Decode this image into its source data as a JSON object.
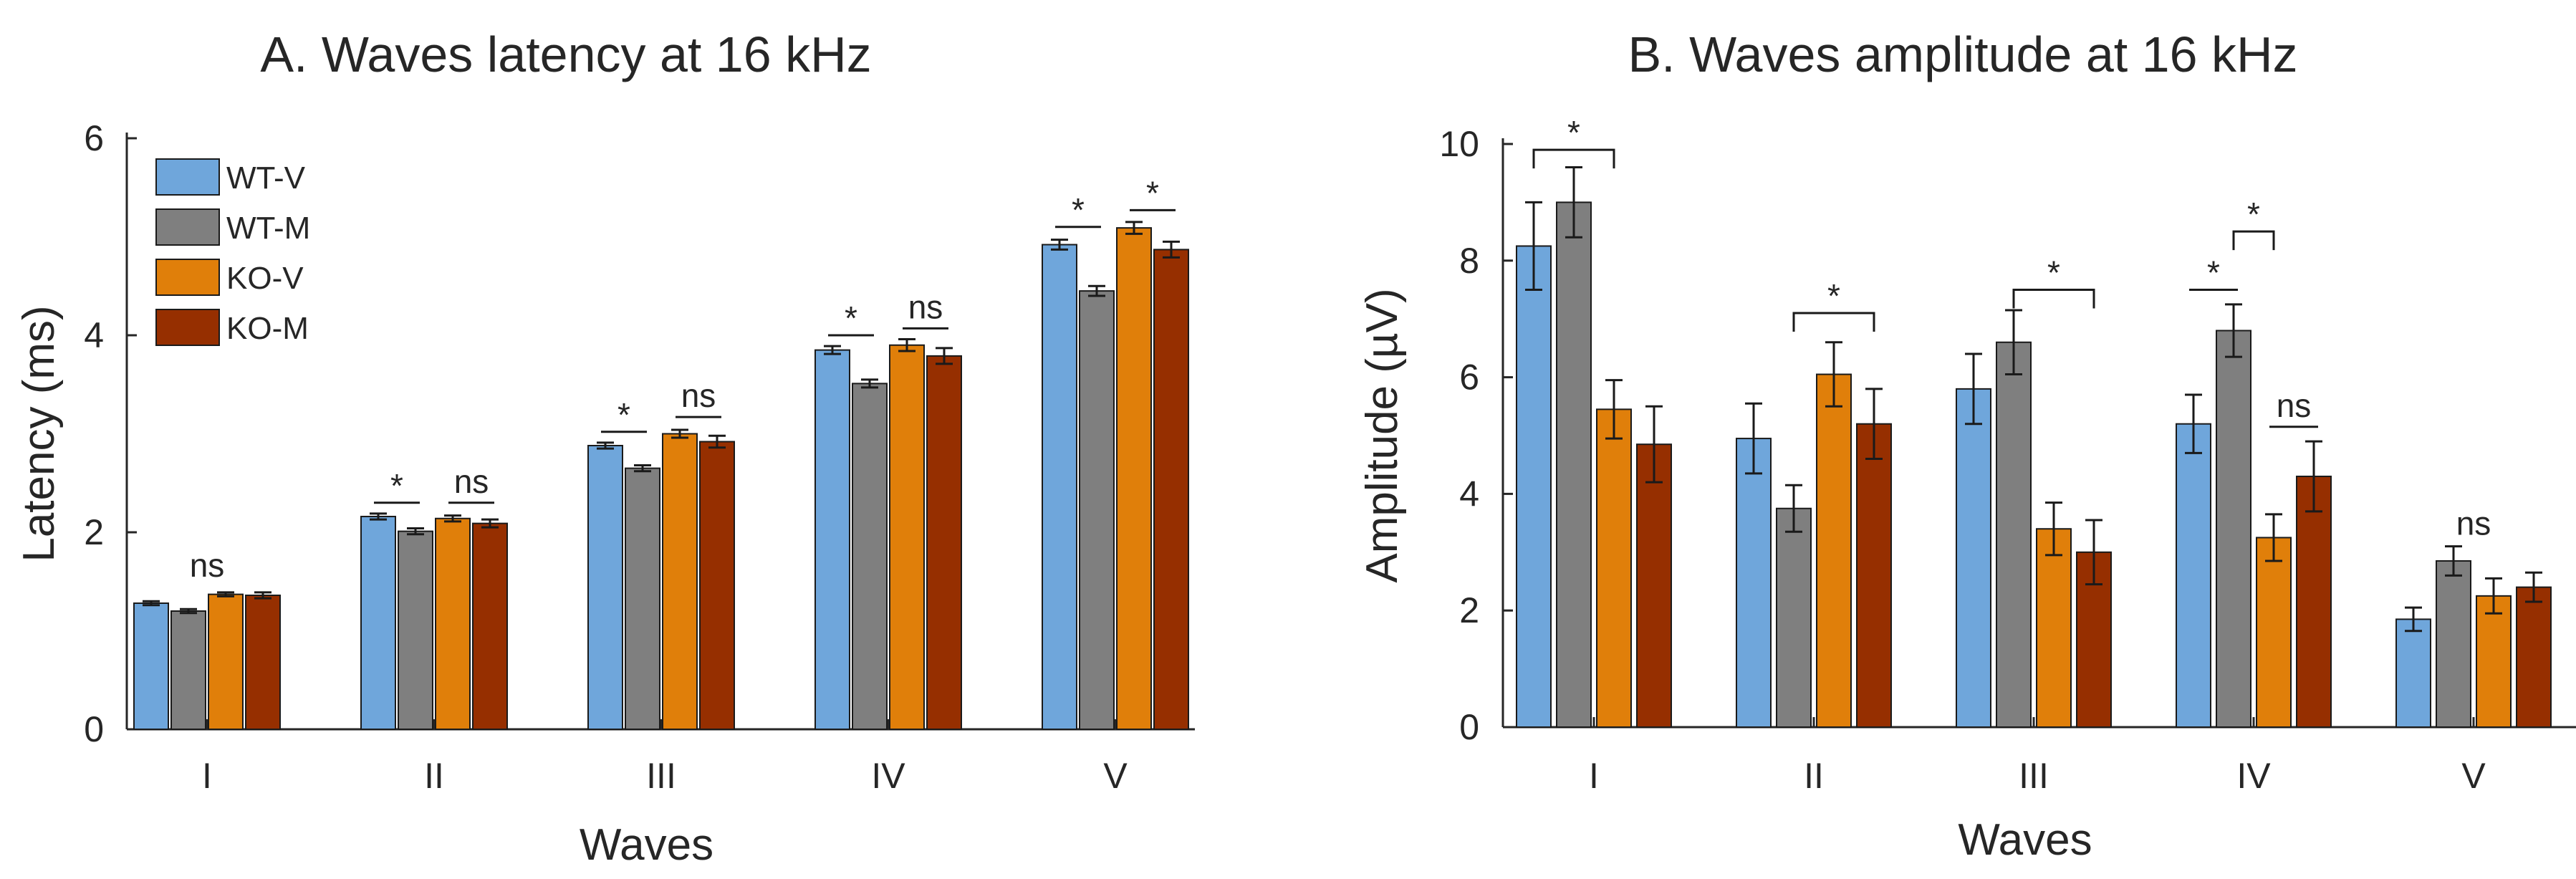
{
  "colors": {
    "WT-V": "#6fa6db",
    "WT-M": "#7f7f7f",
    "KO-V": "#e07f0a",
    "KO-M": "#962f00"
  },
  "chart_data": [
    {
      "type": "bar",
      "title": "A. Waves latency at 16 kHz",
      "xlabel": "Waves",
      "ylabel": "Latency (ms)",
      "ylim": [
        0,
        6
      ],
      "yticks": [
        "0",
        "2",
        "4",
        "6"
      ],
      "categories": [
        "I",
        "II",
        "III",
        "IV",
        "V"
      ],
      "legend": {
        "position": "top-left",
        "entries": [
          "WT-V",
          "WT-M",
          "KO-V",
          "KO-M"
        ]
      },
      "series": [
        {
          "name": "WT-V",
          "values": [
            1.28,
            2.16,
            2.88,
            3.85,
            4.92
          ],
          "errors": [
            0.02,
            0.03,
            0.03,
            0.04,
            0.05
          ]
        },
        {
          "name": "WT-M",
          "values": [
            1.2,
            2.01,
            2.65,
            3.51,
            4.45
          ],
          "errors": [
            0.02,
            0.03,
            0.03,
            0.04,
            0.05
          ]
        },
        {
          "name": "KO-V",
          "values": [
            1.37,
            2.14,
            3.0,
            3.9,
            5.09
          ],
          "errors": [
            0.02,
            0.03,
            0.04,
            0.06,
            0.06
          ]
        },
        {
          "name": "KO-M",
          "values": [
            1.36,
            2.09,
            2.92,
            3.79,
            4.87
          ],
          "errors": [
            0.03,
            0.04,
            0.06,
            0.08,
            0.08
          ]
        }
      ],
      "annotations": [
        {
          "label": "ns",
          "category": 0,
          "from": 0,
          "to": 3,
          "style": "text",
          "y": 1.55
        },
        {
          "label": "*",
          "category": 1,
          "from": 0,
          "to": 1,
          "style": "line",
          "y": 2.3
        },
        {
          "label": "ns",
          "category": 1,
          "from": 2,
          "to": 3,
          "style": "line",
          "y": 2.3
        },
        {
          "label": "*",
          "category": 2,
          "from": 0,
          "to": 1,
          "style": "line",
          "y": 3.02
        },
        {
          "label": "ns",
          "category": 2,
          "from": 2,
          "to": 3,
          "style": "line",
          "y": 3.17
        },
        {
          "label": "*",
          "category": 3,
          "from": 0,
          "to": 1,
          "style": "line",
          "y": 4.0
        },
        {
          "label": "ns",
          "category": 3,
          "from": 2,
          "to": 3,
          "style": "line",
          "y": 4.07
        },
        {
          "label": "*",
          "category": 4,
          "from": 0,
          "to": 1,
          "style": "line",
          "y": 5.1
        },
        {
          "label": "*",
          "category": 4,
          "from": 2,
          "to": 3,
          "style": "line",
          "y": 5.27
        }
      ]
    },
    {
      "type": "bar",
      "title": "B. Waves amplitude at 16 kHz",
      "xlabel": "Waves",
      "ylabel": "Amplitude (µV)",
      "ylim": [
        0,
        10
      ],
      "yticks": [
        "0",
        "2",
        "4",
        "6",
        "8",
        "10"
      ],
      "categories": [
        "I",
        "II",
        "III",
        "IV",
        "V"
      ],
      "series": [
        {
          "name": "WT-V",
          "values": [
            8.25,
            4.95,
            5.8,
            5.2,
            1.85
          ],
          "errors": [
            0.75,
            0.6,
            0.6,
            0.5,
            0.2
          ]
        },
        {
          "name": "WT-M",
          "values": [
            9.0,
            3.75,
            6.6,
            6.8,
            2.85
          ],
          "errors": [
            0.6,
            0.4,
            0.55,
            0.45,
            0.25
          ]
        },
        {
          "name": "KO-V",
          "values": [
            5.45,
            6.05,
            3.4,
            3.25,
            2.25
          ],
          "errors": [
            0.5,
            0.55,
            0.45,
            0.4,
            0.3
          ]
        },
        {
          "name": "KO-M",
          "values": [
            4.85,
            5.2,
            3.0,
            4.3,
            2.4
          ],
          "errors": [
            0.65,
            0.6,
            0.55,
            0.6,
            0.25
          ]
        }
      ],
      "annotations": [
        {
          "label": "*",
          "category": 0,
          "from": 0,
          "to": 2,
          "style": "bracket",
          "y": 9.9
        },
        {
          "label": "*",
          "category": 1,
          "from": 1,
          "to": 3,
          "style": "bracket",
          "y": 7.1
        },
        {
          "label": "*",
          "category": 2,
          "from": 1,
          "to": 3,
          "style": "bracket",
          "y": 7.5
        },
        {
          "label": "*",
          "category": 3,
          "from": 1,
          "to": 2,
          "style": "bracket",
          "y": 8.5
        },
        {
          "label": "*",
          "category": 3,
          "from": 0,
          "to": 1,
          "style": "line",
          "y": 7.5
        },
        {
          "label": "ns",
          "category": 3,
          "from": 2,
          "to": 3,
          "style": "line",
          "y": 5.15
        },
        {
          "label": "ns",
          "category": 4,
          "from": 0,
          "to": 3,
          "style": "text",
          "y": 3.3
        }
      ]
    }
  ]
}
